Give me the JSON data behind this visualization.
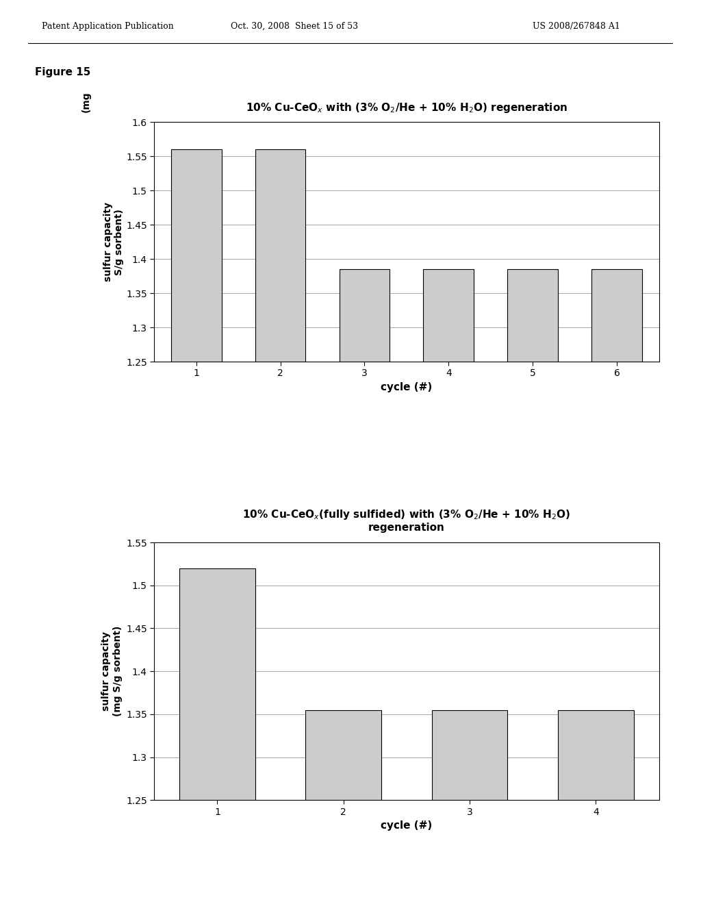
{
  "chart1": {
    "title": "10% Cu-CeO$_x$ with (3% O$_2$/He + 10% H$_2$O) regeneration",
    "xlabel": "cycle (#)",
    "ylabel_top": "(mg",
    "ylabel_bottom": "sulfur capacity\nS/g sorbent)",
    "cycles": [
      1,
      2,
      3,
      4,
      5,
      6
    ],
    "values": [
      1.56,
      1.56,
      1.385,
      1.385,
      1.385,
      1.385
    ],
    "ylim": [
      1.25,
      1.6
    ],
    "yticks": [
      1.25,
      1.3,
      1.35,
      1.4,
      1.45,
      1.5,
      1.55,
      1.6
    ]
  },
  "chart2": {
    "title": "10% Cu-CeO$_x$(fully sulfided) with (3% O$_2$/He + 10% H$_2$O)\nregeneration",
    "xlabel": "cycle (#)",
    "ylabel_top": "sulfur capacity",
    "ylabel_bottom": "(mg S/g sorbent)",
    "cycles": [
      1,
      2,
      3,
      4
    ],
    "values": [
      1.52,
      1.355,
      1.355,
      1.355
    ],
    "ylim": [
      1.25,
      1.55
    ],
    "yticks": [
      1.25,
      1.3,
      1.35,
      1.4,
      1.45,
      1.5,
      1.55
    ]
  },
  "bar_color": "#cccccc",
  "bar_edgecolor": "#000000",
  "figure_bg": "#ffffff",
  "axes_bg": "#ffffff"
}
